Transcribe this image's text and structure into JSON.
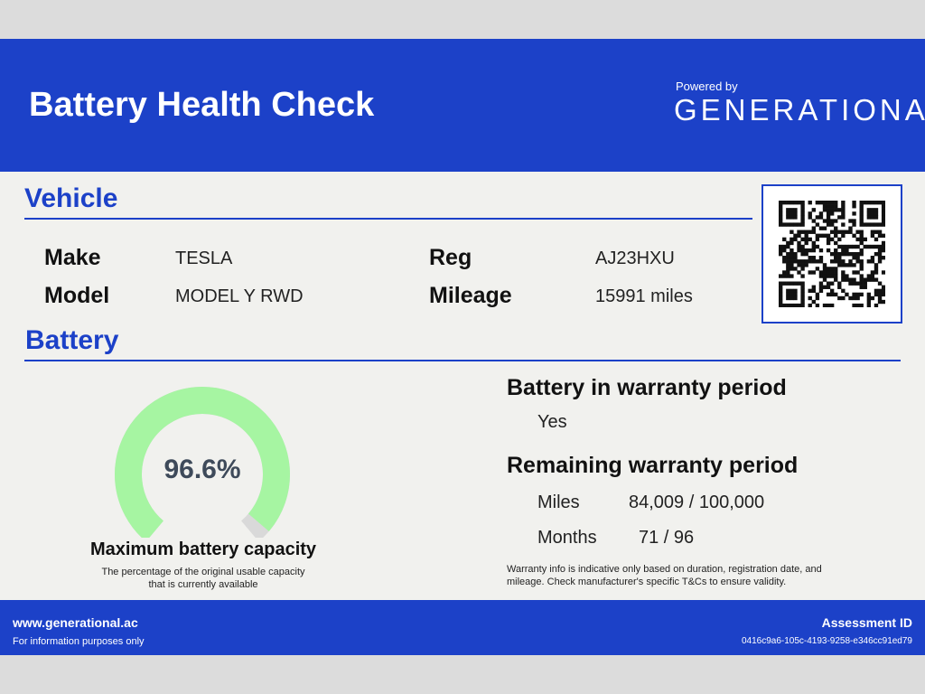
{
  "header": {
    "title": "Battery Health Check",
    "powered_by": "Powered by",
    "brand": "GENERATIONAL",
    "brand_mark": "+"
  },
  "vehicle": {
    "section_title": "Vehicle",
    "make_label": "Make",
    "make_value": "TESLA",
    "model_label": "Model",
    "model_value": "MODEL Y RWD",
    "reg_label": "Reg",
    "reg_value": "AJ23HXU",
    "mileage_label": "Mileage",
    "mileage_value": "15991 miles"
  },
  "battery": {
    "section_title": "Battery",
    "capacity_value": "96.6%",
    "capacity_fraction": 0.966,
    "capacity_label": "Maximum battery capacity",
    "capacity_desc_line1": "The percentage of the original usable capacity",
    "capacity_desc_line2": "that is currently available",
    "warranty_heading": "Battery in warranty period",
    "warranty_value": "Yes",
    "remaining_heading": "Remaining warranty period",
    "miles_label": "Miles",
    "miles_value": "84,009 / 100,000",
    "months_label": "Months",
    "months_value": "71 / 96",
    "disclaimer_line1": "Warranty info is indicative only based on duration, registration date, and",
    "disclaimer_line2": "mileage. Check manufacturer's specific T&Cs to ensure validity."
  },
  "footer": {
    "url": "www.generational.ac",
    "note": "For information purposes only",
    "assessment_label": "Assessment ID",
    "assessment_id": "0416c9a6-105c-4193-9258-e346cc91ed79"
  },
  "colors": {
    "brand_blue": "#1c41c8",
    "gauge_fill": "#a6f5a2",
    "gauge_track": "#d9d9d9"
  },
  "icons": {
    "qr": "qr-code"
  }
}
